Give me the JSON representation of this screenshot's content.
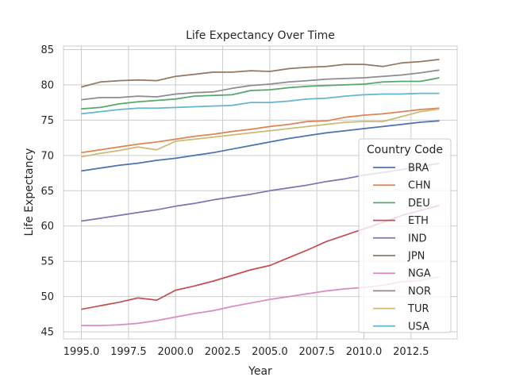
{
  "chart_data": {
    "type": "line",
    "title": "Life Expectancy Over Time",
    "xlabel": "Year",
    "ylabel": "Life Expectancy",
    "xlim": [
      1994.05,
      2014.95
    ],
    "ylim": [
      44.0,
      85.5
    ],
    "xticks": [
      1995,
      1997.5,
      2000,
      2002.5,
      2005,
      2007.5,
      2010,
      2012.5
    ],
    "xtick_labels": [
      "1995.0",
      "1997.5",
      "2000.0",
      "2002.5",
      "2005.0",
      "2007.5",
      "2010.0",
      "2012.5"
    ],
    "yticks": [
      45,
      50,
      55,
      60,
      65,
      70,
      75,
      80,
      85
    ],
    "ytick_labels": [
      "45",
      "50",
      "55",
      "60",
      "65",
      "70",
      "75",
      "80",
      "85"
    ],
    "grid": true,
    "legend_title": "Country Code",
    "legend_position": "lower-right",
    "x": [
      1995,
      1996,
      1997,
      1998,
      1999,
      2000,
      2001,
      2002,
      2003,
      2004,
      2005,
      2006,
      2007,
      2008,
      2009,
      2010,
      2011,
      2012,
      2013,
      2014
    ],
    "series": [
      {
        "name": "BRA",
        "color": "#4c72b0",
        "values": [
          67.8,
          68.2,
          68.6,
          68.9,
          69.3,
          69.6,
          70.0,
          70.4,
          70.9,
          71.4,
          71.9,
          72.4,
          72.8,
          73.2,
          73.5,
          73.8,
          74.1,
          74.4,
          74.7,
          74.9
        ]
      },
      {
        "name": "CHN",
        "color": "#dd8452",
        "values": [
          70.4,
          70.8,
          71.2,
          71.6,
          71.9,
          72.3,
          72.7,
          73.0,
          73.4,
          73.7,
          74.1,
          74.4,
          74.8,
          74.9,
          75.4,
          75.7,
          75.9,
          76.2,
          76.5,
          76.7
        ]
      },
      {
        "name": "DEU",
        "color": "#55a868",
        "values": [
          76.6,
          76.8,
          77.3,
          77.6,
          77.8,
          78.0,
          78.4,
          78.5,
          78.6,
          79.2,
          79.3,
          79.6,
          79.8,
          79.9,
          80.0,
          80.1,
          80.4,
          80.5,
          80.5,
          81.0
        ]
      },
      {
        "name": "ETH",
        "color": "#c44e52",
        "values": [
          48.2,
          48.7,
          49.2,
          49.8,
          49.5,
          50.9,
          51.5,
          52.2,
          53.0,
          53.8,
          54.4,
          55.5,
          56.6,
          57.8,
          58.7,
          59.6,
          60.5,
          61.5,
          62.2,
          62.9
        ]
      },
      {
        "name": "IND",
        "color": "#8172b3",
        "values": [
          60.7,
          61.1,
          61.5,
          61.9,
          62.3,
          62.8,
          63.2,
          63.7,
          64.1,
          64.5,
          65.0,
          65.4,
          65.8,
          66.3,
          66.7,
          67.2,
          67.6,
          68.0,
          68.4,
          68.9
        ]
      },
      {
        "name": "JPN",
        "color": "#937860",
        "values": [
          79.7,
          80.4,
          80.6,
          80.7,
          80.6,
          81.2,
          81.5,
          81.8,
          81.8,
          82.0,
          81.9,
          82.3,
          82.5,
          82.6,
          82.9,
          82.9,
          82.6,
          83.1,
          83.3,
          83.6
        ]
      },
      {
        "name": "NGA",
        "color": "#da8bc3",
        "values": [
          45.9,
          45.9,
          46.0,
          46.2,
          46.6,
          47.1,
          47.6,
          48.0,
          48.6,
          49.1,
          49.6,
          50.0,
          50.4,
          50.8,
          51.1,
          51.3,
          51.6,
          52.1,
          52.3,
          52.8
        ]
      },
      {
        "name": "NOR",
        "color": "#8c8c8c",
        "values": [
          77.9,
          78.2,
          78.2,
          78.4,
          78.3,
          78.7,
          78.9,
          79.0,
          79.5,
          79.9,
          80.1,
          80.4,
          80.6,
          80.8,
          80.9,
          81.0,
          81.2,
          81.4,
          81.7,
          82.1
        ]
      },
      {
        "name": "TUR",
        "color": "#ccb974",
        "values": [
          69.8,
          70.3,
          70.7,
          71.2,
          70.8,
          72.0,
          72.3,
          72.6,
          72.9,
          73.2,
          73.5,
          73.8,
          74.1,
          74.4,
          74.7,
          74.8,
          74.8,
          75.5,
          76.2,
          76.6
        ]
      },
      {
        "name": "USA",
        "color": "#64b5cd",
        "values": [
          75.9,
          76.2,
          76.5,
          76.7,
          76.7,
          76.8,
          76.9,
          77.0,
          77.1,
          77.5,
          77.5,
          77.7,
          78.0,
          78.1,
          78.4,
          78.6,
          78.7,
          78.7,
          78.8,
          78.8
        ]
      }
    ]
  }
}
